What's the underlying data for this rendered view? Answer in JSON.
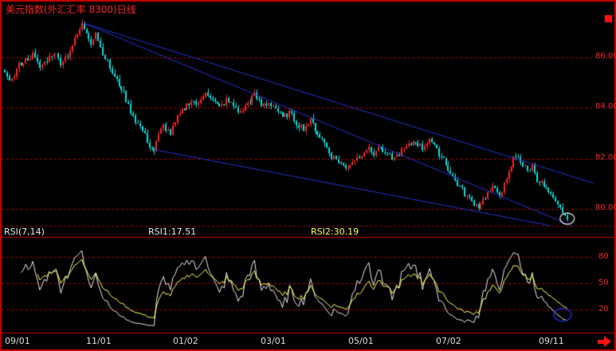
{
  "window": {
    "title": "美元指数(外汇汇率 8300)日线"
  },
  "colors": {
    "background": "#000000",
    "border": "#cc0000",
    "grid": "#aa0000",
    "separator": "#cc0000",
    "up": "#ff2222",
    "down": "#00dddd",
    "trendline": "#2233cc",
    "rsi1": "#e8e8e8",
    "rsi2": "#ffff55",
    "axis_label": "#ff2222",
    "date_label": "#dddddd"
  },
  "main_chart": {
    "y_ticks": [
      {
        "label": "86.00",
        "value": 86
      },
      {
        "label": "84.00",
        "value": 84
      },
      {
        "label": "82.00",
        "value": 82
      },
      {
        "label": "80.00",
        "value": 80
      }
    ]
  },
  "rsi_panel": {
    "indicator_label": "RSI(7,14)",
    "rsi1_label": "RSI1:17.51",
    "rsi2_label": "RSI2:30.19",
    "y_ticks": [
      {
        "label": "80",
        "value": 80
      },
      {
        "label": "50",
        "value": 50
      },
      {
        "label": "20",
        "value": 20
      }
    ]
  },
  "x_axis": {
    "ticks": [
      {
        "label": "09/01",
        "day": 0
      },
      {
        "label": "11/01",
        "day": 39
      },
      {
        "label": "01/02",
        "day": 76
      },
      {
        "label": "03/01",
        "day": 114
      },
      {
        "label": "05/01",
        "day": 151
      },
      {
        "label": "07/02",
        "day": 189
      },
      {
        "label": "09/11",
        "day": 233
      }
    ]
  },
  "chart_data": {
    "type": "candlestick_with_rsi",
    "title": "美元指数(外汇汇率 8300)日线",
    "days_total": 252,
    "price_range": [
      78.8,
      87.9
    ],
    "rsi_range": [
      0,
      100
    ],
    "rsi_periods": [
      7,
      14
    ],
    "rsi_last_values": {
      "rsi1": 17.51,
      "rsi2": 30.19
    },
    "close_anchors": [
      [
        0,
        85.4
      ],
      [
        3,
        85.1
      ],
      [
        6,
        85.7
      ],
      [
        9,
        85.9
      ],
      [
        12,
        86.1
      ],
      [
        15,
        85.6
      ],
      [
        18,
        85.9
      ],
      [
        21,
        86.2
      ],
      [
        24,
        85.8
      ],
      [
        27,
        86.1
      ],
      [
        30,
        86.7
      ],
      [
        33,
        87.3
      ],
      [
        35,
        87.0
      ],
      [
        37,
        86.6
      ],
      [
        39,
        87.0
      ],
      [
        41,
        86.4
      ],
      [
        44,
        85.8
      ],
      [
        47,
        85.2
      ],
      [
        50,
        84.8
      ],
      [
        53,
        84.1
      ],
      [
        56,
        83.5
      ],
      [
        59,
        83.1
      ],
      [
        62,
        82.5
      ],
      [
        64,
        82.3
      ],
      [
        66,
        82.9
      ],
      [
        68,
        83.3
      ],
      [
        71,
        83.0
      ],
      [
        74,
        83.6
      ],
      [
        77,
        84.0
      ],
      [
        80,
        84.3
      ],
      [
        83,
        84.1
      ],
      [
        86,
        84.7
      ],
      [
        89,
        84.3
      ],
      [
        92,
        84.0
      ],
      [
        95,
        84.3
      ],
      [
        98,
        84.1
      ],
      [
        101,
        83.8
      ],
      [
        104,
        84.2
      ],
      [
        107,
        84.5
      ],
      [
        110,
        84.1
      ],
      [
        113,
        84.2
      ],
      [
        116,
        84.0
      ],
      [
        119,
        83.6
      ],
      [
        122,
        83.8
      ],
      [
        125,
        83.4
      ],
      [
        128,
        83.2
      ],
      [
        131,
        83.5
      ],
      [
        134,
        83.0
      ],
      [
        137,
        82.6
      ],
      [
        140,
        82.1
      ],
      [
        143,
        81.9
      ],
      [
        146,
        81.6
      ],
      [
        149,
        81.9
      ],
      [
        152,
        82.1
      ],
      [
        155,
        82.4
      ],
      [
        158,
        82.2
      ],
      [
        161,
        82.5
      ],
      [
        164,
        82.1
      ],
      [
        167,
        82.0
      ],
      [
        170,
        82.3
      ],
      [
        173,
        82.5
      ],
      [
        176,
        82.7
      ],
      [
        179,
        82.4
      ],
      [
        182,
        82.8
      ],
      [
        185,
        82.3
      ],
      [
        188,
        82.0
      ],
      [
        191,
        81.4
      ],
      [
        194,
        81.0
      ],
      [
        197,
        80.6
      ],
      [
        200,
        80.3
      ],
      [
        203,
        80.1
      ],
      [
        206,
        80.5
      ],
      [
        209,
        80.8
      ],
      [
        212,
        80.6
      ],
      [
        215,
        81.1
      ],
      [
        218,
        82.0
      ],
      [
        220,
        82.1
      ],
      [
        222,
        81.7
      ],
      [
        224,
        81.5
      ],
      [
        226,
        81.7
      ],
      [
        228,
        81.2
      ],
      [
        231,
        80.9
      ],
      [
        234,
        80.5
      ],
      [
        237,
        80.1
      ],
      [
        239,
        79.9
      ],
      [
        241,
        79.6
      ]
    ],
    "trendlines": [
      {
        "from": [
          34,
          87.35
        ],
        "to": [
          253,
          81.0
        ]
      },
      {
        "from": [
          34,
          87.35
        ],
        "to": [
          253,
          78.95
        ]
      },
      {
        "from": [
          64,
          82.35
        ],
        "to": [
          253,
          79.0
        ]
      }
    ],
    "annotations": [
      {
        "type": "circle",
        "panel": "price",
        "day": 241,
        "value": 79.62,
        "rx": 9,
        "ry": 7,
        "color": "#e8e8e8"
      },
      {
        "type": "circle",
        "panel": "rsi",
        "day": 239,
        "value": 14.0,
        "rx": 11,
        "ry": 8,
        "color": "#2233ee"
      }
    ]
  }
}
